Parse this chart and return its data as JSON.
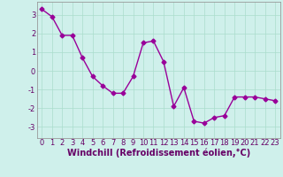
{
  "x": [
    0,
    1,
    2,
    3,
    4,
    5,
    6,
    7,
    8,
    9,
    10,
    11,
    12,
    13,
    14,
    15,
    16,
    17,
    18,
    19,
    20,
    21,
    22,
    23
  ],
  "y": [
    3.3,
    2.9,
    1.9,
    1.9,
    0.7,
    -0.3,
    -0.8,
    -1.2,
    -1.2,
    -0.3,
    1.5,
    1.6,
    0.5,
    -1.9,
    -0.9,
    -2.7,
    -2.8,
    -2.5,
    -2.4,
    -1.4,
    -1.4,
    -1.4,
    -1.5,
    -1.6
  ],
  "line_color": "#990099",
  "marker": "D",
  "markersize": 2.5,
  "linewidth": 1.0,
  "xlabel": "Windchill (Refroidissement éolien,°C)",
  "xlabel_fontsize": 7.0,
  "xlabel_color": "#660066",
  "xtick_labels": [
    "0",
    "1",
    "2",
    "3",
    "4",
    "5",
    "6",
    "7",
    "8",
    "9",
    "10",
    "11",
    "12",
    "13",
    "14",
    "15",
    "16",
    "17",
    "18",
    "19",
    "20",
    "21",
    "22",
    "23"
  ],
  "ytick_labels": [
    "-3",
    "-2",
    "-1",
    "0",
    "1",
    "2",
    "3"
  ],
  "ytick_values": [
    -3,
    -2,
    -1,
    0,
    1,
    2,
    3
  ],
  "ylim": [
    -3.6,
    3.7
  ],
  "xlim": [
    -0.5,
    23.5
  ],
  "grid_color": "#aaddcc",
  "background_color": "#cff0eb",
  "tick_color": "#660066",
  "tick_fontsize": 6.0,
  "spine_color": "#999999"
}
